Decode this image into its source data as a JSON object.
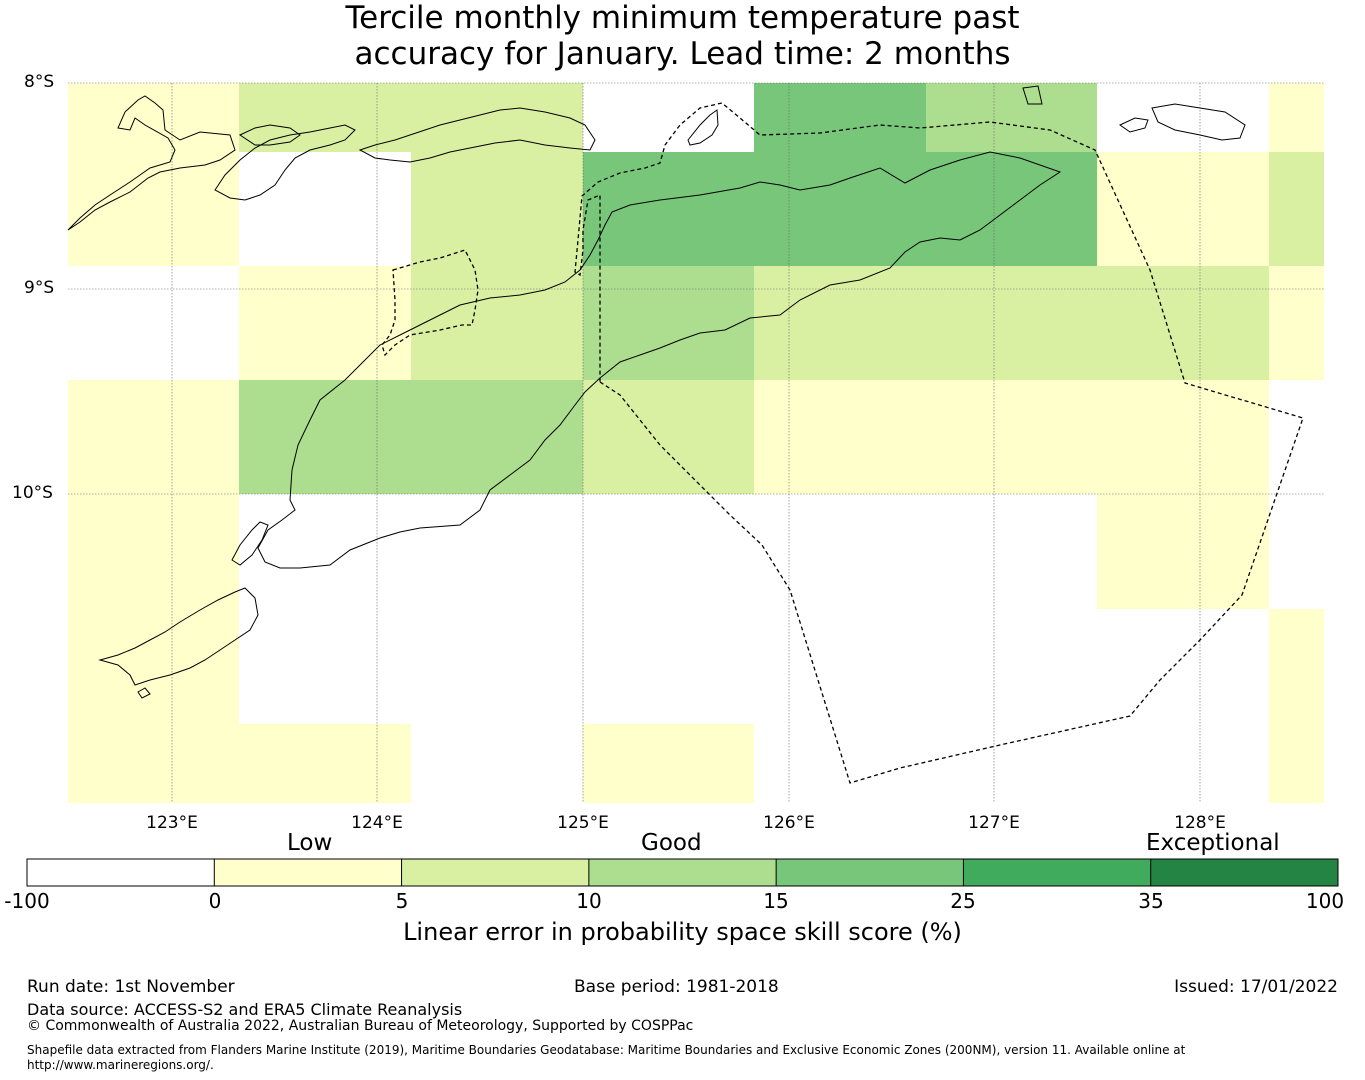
{
  "title": {
    "line1": "Tercile monthly minimum temperature past",
    "line2": "accuracy for January. Lead time: 2 months"
  },
  "map": {
    "lat_labels": [
      "8°S",
      "9°S",
      "10°S"
    ],
    "lon_labels": [
      "123°E",
      "124°E",
      "125°E",
      "126°E",
      "127°E",
      "128°E"
    ],
    "grid_cells": [
      {
        "row": 0,
        "col": 0,
        "category": 1
      },
      {
        "row": 0,
        "col": 1,
        "category": 2
      },
      {
        "row": 0,
        "col": 2,
        "category": 2
      },
      {
        "row": 0,
        "col": 3,
        "category": 0
      },
      {
        "row": 0,
        "col": 4,
        "category": 4
      },
      {
        "row": 0,
        "col": 5,
        "category": 3
      },
      {
        "row": 0,
        "col": 6,
        "category": 0
      },
      {
        "row": 0,
        "col": 7,
        "category": 1
      },
      {
        "row": 1,
        "col": 0,
        "category": 1
      },
      {
        "row": 1,
        "col": 1,
        "category": 0
      },
      {
        "row": 1,
        "col": 2,
        "category": 2
      },
      {
        "row": 1,
        "col": 3,
        "category": 4
      },
      {
        "row": 1,
        "col": 4,
        "category": 4
      },
      {
        "row": 1,
        "col": 5,
        "category": 4
      },
      {
        "row": 1,
        "col": 6,
        "category": 1
      },
      {
        "row": 1,
        "col": 7,
        "category": 2
      },
      {
        "row": 2,
        "col": 0,
        "category": 0
      },
      {
        "row": 2,
        "col": 1,
        "category": 1
      },
      {
        "row": 2,
        "col": 2,
        "category": 2
      },
      {
        "row": 2,
        "col": 3,
        "category": 3
      },
      {
        "row": 2,
        "col": 4,
        "category": 2
      },
      {
        "row": 2,
        "col": 5,
        "category": 2
      },
      {
        "row": 2,
        "col": 6,
        "category": 2
      },
      {
        "row": 2,
        "col": 7,
        "category": 1
      },
      {
        "row": 3,
        "col": 0,
        "category": 1
      },
      {
        "row": 3,
        "col": 1,
        "category": 3
      },
      {
        "row": 3,
        "col": 2,
        "category": 3
      },
      {
        "row": 3,
        "col": 3,
        "category": 2
      },
      {
        "row": 3,
        "col": 4,
        "category": 1
      },
      {
        "row": 3,
        "col": 5,
        "category": 1
      },
      {
        "row": 3,
        "col": 6,
        "category": 1
      },
      {
        "row": 3,
        "col": 7,
        "category": 0
      },
      {
        "row": 4,
        "col": 0,
        "category": 1
      },
      {
        "row": 4,
        "col": 1,
        "category": 0
      },
      {
        "row": 4,
        "col": 2,
        "category": 0
      },
      {
        "row": 4,
        "col": 3,
        "category": 0
      },
      {
        "row": 4,
        "col": 4,
        "category": 0
      },
      {
        "row": 4,
        "col": 5,
        "category": 0
      },
      {
        "row": 4,
        "col": 6,
        "category": 1
      },
      {
        "row": 4,
        "col": 7,
        "category": 0
      },
      {
        "row": 5,
        "col": 0,
        "category": 1
      },
      {
        "row": 5,
        "col": 1,
        "category": 0
      },
      {
        "row": 5,
        "col": 2,
        "category": 0
      },
      {
        "row": 5,
        "col": 3,
        "category": 0
      },
      {
        "row": 5,
        "col": 4,
        "category": 0
      },
      {
        "row": 5,
        "col": 5,
        "category": 0
      },
      {
        "row": 5,
        "col": 6,
        "category": 0
      },
      {
        "row": 5,
        "col": 7,
        "category": 1
      },
      {
        "row": 6,
        "col": 0,
        "category": 1
      },
      {
        "row": 6,
        "col": 1,
        "category": 1
      },
      {
        "row": 6,
        "col": 2,
        "category": 0
      },
      {
        "row": 6,
        "col": 3,
        "category": 1
      },
      {
        "row": 6,
        "col": 4,
        "category": 0
      },
      {
        "row": 6,
        "col": 5,
        "category": 0
      },
      {
        "row": 6,
        "col": 6,
        "category": 0
      },
      {
        "row": 6,
        "col": 7,
        "category": 1
      }
    ]
  },
  "colorbar": {
    "categories": [
      "Low",
      "Good",
      "Exceptional"
    ],
    "ticks": [
      "-100",
      "0",
      "5",
      "10",
      "15",
      "25",
      "35",
      "100"
    ],
    "colors": [
      "#ffffff",
      "#ffffcc",
      "#d9f0a3",
      "#addd8e",
      "#78c679",
      "#41ab5d",
      "#238443"
    ],
    "label": "Linear error in probability space skill score (%)"
  },
  "footer": {
    "run_date": "Run date: 1st November",
    "base_period": "Base period: 1981-2018",
    "issued": "Issued: 17/01/2022",
    "data_source": "Data source: ACCESS-S2 and ERA5 Climate Reanalysis",
    "copyright": "© Commonwealth of Australia 2022, Australian Bureau of Meteorology, Supported by COSPPac",
    "shapefile": "Shapefile data extracted from Flanders Marine Institute (2019), Maritime Boundaries Geodatabase: Maritime Boundaries and Exclusive Economic Zones (200NM), version 11. Available online at http://www.marineregions.org/."
  }
}
